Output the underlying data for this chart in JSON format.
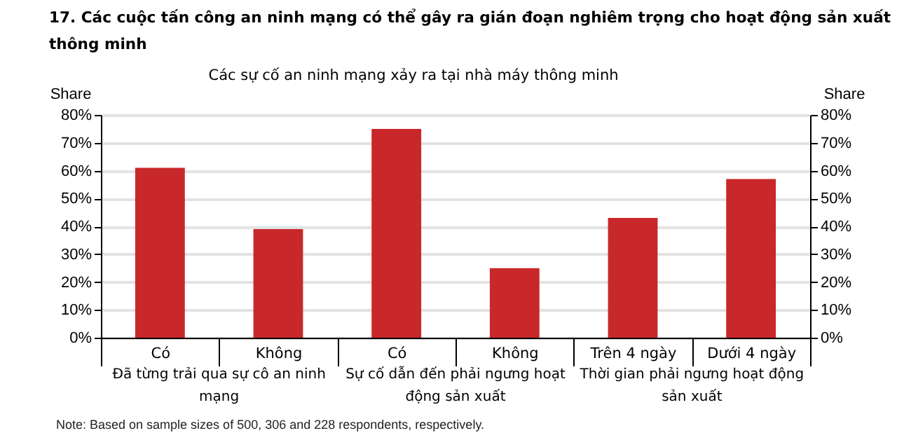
{
  "chart_data": {
    "type": "bar",
    "title": "17. Các cuộc tấn công an ninh mạng có thể gây ra gián đoạn nghiêm trọng cho hoạt động sản xuất thông minh",
    "subtitle": "Các sự cố an ninh mạng xảy ra tại nhà máy thông minh",
    "ylabel": "Share",
    "y2label": "Share",
    "categories": [
      "Có",
      "Không",
      "Có",
      "Không",
      "Trên 4 ngày",
      "Dưới 4 ngày"
    ],
    "values": [
      61,
      39,
      75,
      25,
      43,
      57
    ],
    "color": "#c8282a",
    "ylim": [
      0,
      80
    ],
    "yticks": [
      {
        "value": 0,
        "label": "0%"
      },
      {
        "value": 10,
        "label": "10%"
      },
      {
        "value": 20,
        "label": "20%"
      },
      {
        "value": 30,
        "label": "30%"
      },
      {
        "value": 40,
        "label": "40%"
      },
      {
        "value": 50,
        "label": "50%"
      },
      {
        "value": 60,
        "label": "60%"
      },
      {
        "value": 70,
        "label": "70%"
      },
      {
        "value": 80,
        "label": "80%"
      }
    ],
    "y2lim": [
      0,
      80
    ],
    "y2ticks": [
      {
        "value": 0,
        "label": "0%"
      },
      {
        "value": 10,
        "label": "10%"
      },
      {
        "value": 20,
        "label": "20%"
      },
      {
        "value": 30,
        "label": "30%"
      },
      {
        "value": 40,
        "label": "40%"
      },
      {
        "value": 50,
        "label": "50%"
      },
      {
        "value": 60,
        "label": "60%"
      },
      {
        "value": 70,
        "label": "70%"
      },
      {
        "value": 80,
        "label": "80%"
      }
    ],
    "grid": "y",
    "annotations": [
      "Đã từng trải qua sự cô an ninh mạng",
      "Sự cố dẫn đến phải ngưng hoạt động sản xuất",
      "Thời gian phải ngưng hoạt động sản xuất",
      "Note: Based on sample sizes of 500, 306 and 228 respondents, respectively."
    ]
  }
}
